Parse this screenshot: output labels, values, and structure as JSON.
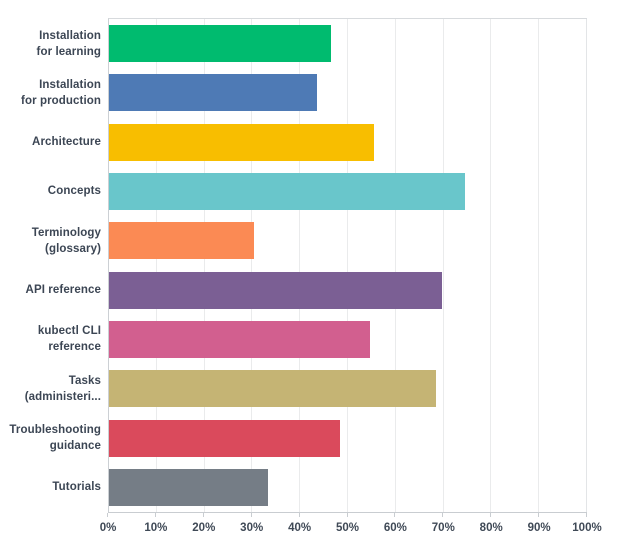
{
  "chart_data": {
    "type": "bar",
    "orientation": "horizontal",
    "unit": "%",
    "xlim": [
      0,
      100
    ],
    "grid": true,
    "x_ticks": [
      "0%",
      "10%",
      "20%",
      "30%",
      "40%",
      "50%",
      "60%",
      "70%",
      "80%",
      "90%",
      "100%"
    ],
    "categories": [
      {
        "label": "Installation for learning",
        "lines": [
          "Installation",
          "for learning"
        ],
        "value": 46.4,
        "color": "#00bb6f"
      },
      {
        "label": "Installation for production",
        "lines": [
          "Installation",
          "for production"
        ],
        "value": 43.5,
        "color": "#4e7ab5"
      },
      {
        "label": "Architecture",
        "lines": [
          "Architecture"
        ],
        "value": 55.4,
        "color": "#f8be00"
      },
      {
        "label": "Concepts",
        "lines": [
          "Concepts"
        ],
        "value": 74.5,
        "color": "#69c6cb"
      },
      {
        "label": "Terminology (glossary)",
        "lines": [
          "Terminology",
          "(glossary)"
        ],
        "value": 30.4,
        "color": "#fb8a54"
      },
      {
        "label": "API reference",
        "lines": [
          "API reference"
        ],
        "value": 69.6,
        "color": "#7b5f94"
      },
      {
        "label": "kubectl CLI reference",
        "lines": [
          "kubectl CLI",
          "reference"
        ],
        "value": 54.5,
        "color": "#d25f8f"
      },
      {
        "label": "Tasks (administeri...",
        "lines": [
          "Tasks",
          "(administeri..."
        ],
        "value": 68.5,
        "color": "#c5b474"
      },
      {
        "label": "Troubleshooting guidance",
        "lines": [
          "Troubleshooting",
          "guidance"
        ],
        "value": 48.3,
        "color": "#da4a5c"
      },
      {
        "label": "Tutorials",
        "lines": [
          "Tutorials"
        ],
        "value": 33.2,
        "color": "#757d86"
      }
    ],
    "colors": {
      "axis_line": "#c9cdd1",
      "gridline": "#eaebec",
      "label_text": "#3c4654",
      "tick_text": "#3f4956",
      "background": "#ffffff"
    }
  }
}
